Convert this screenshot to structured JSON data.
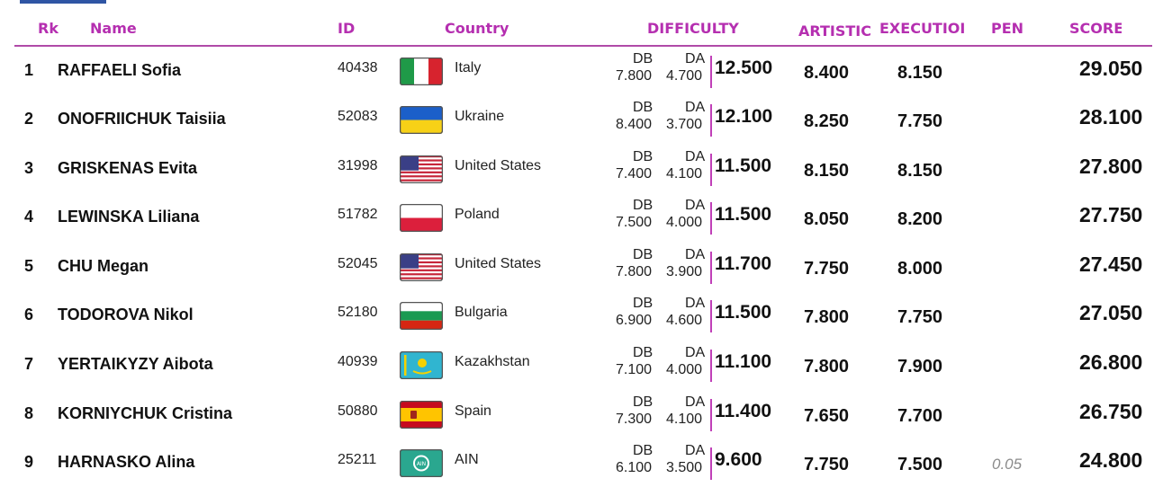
{
  "headers": {
    "rank": "Rk",
    "name": "Name",
    "id": "ID",
    "country": "Country",
    "difficulty": "DIFFICULTY",
    "artistic": "ARTISTIC",
    "execution": "EXECUTIOI",
    "penalty": "PEN",
    "score": "SCORE"
  },
  "labels": {
    "db": "DB",
    "da": "DA"
  },
  "colors": {
    "header": "#b52fb0",
    "accent_tab": "#2f55a4",
    "rule": "#b04aa8"
  },
  "athletes": [
    {
      "rank": "1",
      "name": "RAFFAELI Sofia",
      "id": "40438",
      "country": "Italy",
      "flag_icon": "flag-italy-icon",
      "db": "7.800",
      "da": "4.700",
      "difficulty": "12.500",
      "artistic": "8.400",
      "execution": "8.150",
      "penalty": "",
      "score": "29.050"
    },
    {
      "rank": "2",
      "name": "ONOFRIICHUK Taisiia",
      "id": "52083",
      "country": "Ukraine",
      "flag_icon": "flag-ukraine-icon",
      "db": "8.400",
      "da": "3.700",
      "difficulty": "12.100",
      "artistic": "8.250",
      "execution": "7.750",
      "penalty": "",
      "score": "28.100"
    },
    {
      "rank": "3",
      "name": "GRISKENAS Evita",
      "id": "31998",
      "country": "United States",
      "flag_icon": "flag-usa-icon",
      "db": "7.400",
      "da": "4.100",
      "difficulty": "11.500",
      "artistic": "8.150",
      "execution": "8.150",
      "penalty": "",
      "score": "27.800"
    },
    {
      "rank": "4",
      "name": "LEWINSKA Liliana",
      "id": "51782",
      "country": "Poland",
      "flag_icon": "flag-poland-icon",
      "db": "7.500",
      "da": "4.000",
      "difficulty": "11.500",
      "artistic": "8.050",
      "execution": "8.200",
      "penalty": "",
      "score": "27.750"
    },
    {
      "rank": "5",
      "name": "CHU Megan",
      "id": "52045",
      "country": "United States",
      "flag_icon": "flag-usa-icon",
      "db": "7.800",
      "da": "3.900",
      "difficulty": "11.700",
      "artistic": "7.750",
      "execution": "8.000",
      "penalty": "",
      "score": "27.450"
    },
    {
      "rank": "6",
      "name": "TODOROVA Nikol",
      "id": "52180",
      "country": "Bulgaria",
      "flag_icon": "flag-bulgaria-icon",
      "db": "6.900",
      "da": "4.600",
      "difficulty": "11.500",
      "artistic": "7.800",
      "execution": "7.750",
      "penalty": "",
      "score": "27.050"
    },
    {
      "rank": "7",
      "name": "YERTAIKYZY Aibota",
      "id": "40939",
      "country": "Kazakhstan",
      "flag_icon": "flag-kazakhstan-icon",
      "db": "7.100",
      "da": "4.000",
      "difficulty": "11.100",
      "artistic": "7.800",
      "execution": "7.900",
      "penalty": "",
      "score": "26.800"
    },
    {
      "rank": "8",
      "name": "KORNIYCHUK Cristina",
      "id": "50880",
      "country": "Spain",
      "flag_icon": "flag-spain-icon",
      "db": "7.300",
      "da": "4.100",
      "difficulty": "11.400",
      "artistic": "7.650",
      "execution": "7.700",
      "penalty": "",
      "score": "26.750"
    },
    {
      "rank": "9",
      "name": "HARNASKO Alina",
      "id": "25211",
      "country": "AIN",
      "flag_icon": "flag-ain-icon",
      "flag_text": "AIN",
      "db": "6.100",
      "da": "3.500",
      "difficulty": "9.600",
      "artistic": "7.750",
      "execution": "7.500",
      "penalty": "0.05",
      "score": "24.800"
    }
  ]
}
